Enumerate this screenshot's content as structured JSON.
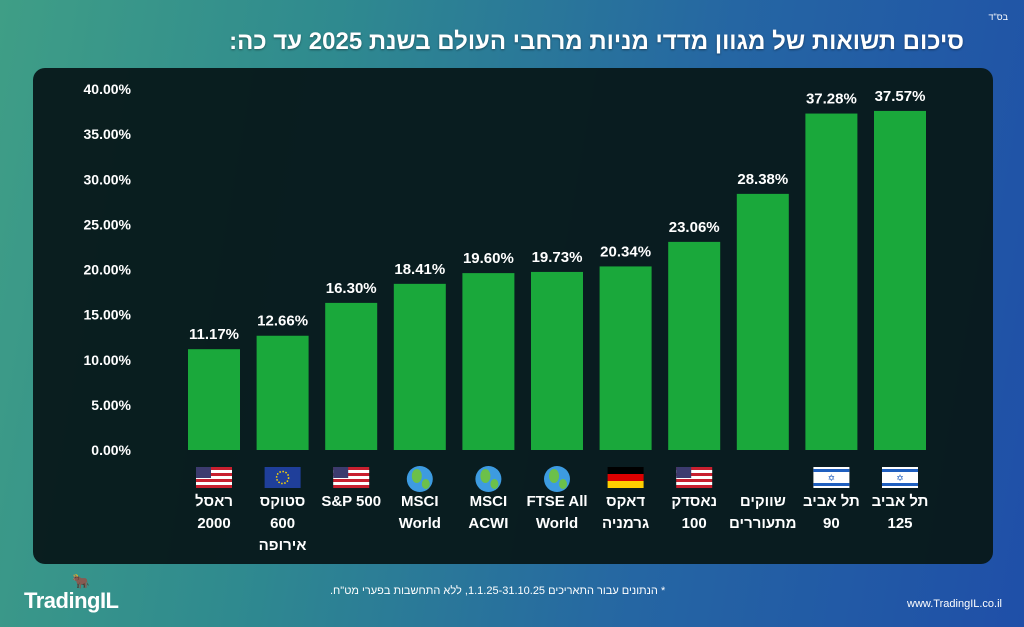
{
  "header": {
    "blessing": "בס\"ד",
    "title": "סיכום תשואות של מגוון מדדי מניות מרחבי העולם בשנת 2025 עד כה:"
  },
  "chart_data": {
    "type": "bar",
    "title": "סיכום תשואות של מגוון מדדי מניות מרחבי העולם בשנת 2025 עד כה:",
    "categories": [
      "ראסל\n2000",
      "סטוקס\n600\nאירופה",
      "S&P 500",
      "MSCI\nWorld",
      "MSCI\nACWI",
      "FTSE All\nWorld",
      "דאקס\nגרמניה",
      "נאסדק\n100",
      "שווקים\nמתעוררים",
      "תל אביב\n90",
      "תל אביב\n125"
    ],
    "flags": [
      "us",
      "eu",
      "us",
      "globe",
      "globe",
      "globe",
      "de",
      "us",
      "none",
      "il",
      "il"
    ],
    "values": [
      11.17,
      12.66,
      16.3,
      18.41,
      19.6,
      19.73,
      20.34,
      23.06,
      28.38,
      37.28,
      37.57
    ],
    "data_labels": [
      "11.17%",
      "12.66%",
      "16.30%",
      "18.41%",
      "19.60%",
      "19.73%",
      "20.34%",
      "23.06%",
      "28.38%",
      "37.28%",
      "37.57%"
    ],
    "ytick_labels": [
      "0.00%",
      "5.00%",
      "10.00%",
      "15.00%",
      "20.00%",
      "25.00%",
      "30.00%",
      "35.00%",
      "40.00%"
    ],
    "ylim": [
      0,
      40
    ],
    "grid": false,
    "bar_color": "#1aa83b",
    "background": "#081a1c"
  },
  "footer": {
    "note": "* הנתונים עבור התאריכים 1.1.25-31.10.25, ללא התחשבות בפערי מט\"ח.",
    "url": "www.TradingIL.co.il",
    "logo": "TradingIL"
  }
}
